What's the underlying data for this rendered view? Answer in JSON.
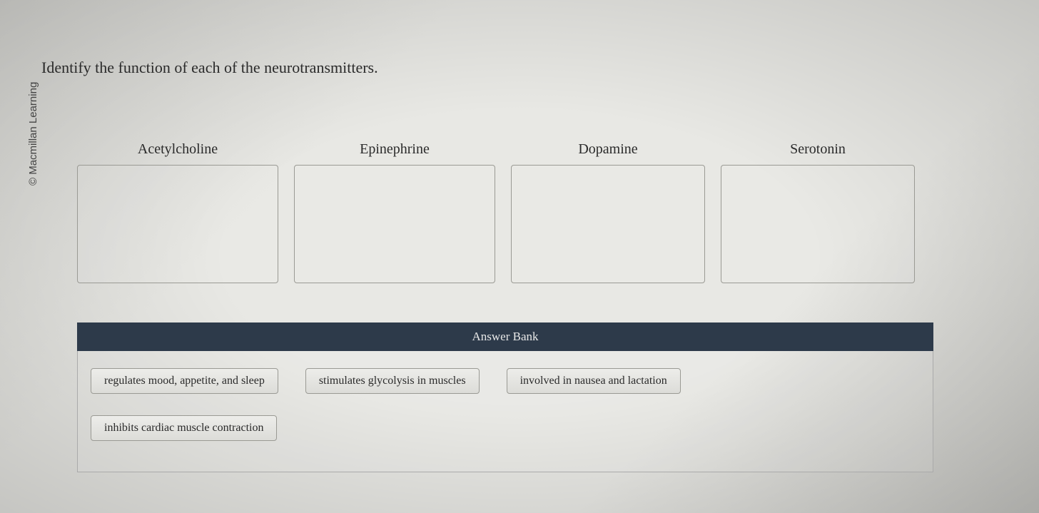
{
  "copyright": "© Macmillan Learning",
  "question": "Identify the function of each of the neurotransmitters.",
  "dropzones": [
    {
      "label": "Acetylcholine"
    },
    {
      "label": "Epinephrine"
    },
    {
      "label": "Dopamine"
    },
    {
      "label": "Serotonin"
    }
  ],
  "answerBank": {
    "title": "Answer Bank",
    "rows": [
      [
        "regulates mood, appetite, and sleep",
        "stimulates glycolysis in muscles",
        "involved in nausea and lactation"
      ],
      [
        "inhibits cardiac muscle contraction"
      ]
    ]
  },
  "colors": {
    "header_bg": "#2d3a4a",
    "border": "#9a9a94",
    "text": "#2a2a2a"
  }
}
